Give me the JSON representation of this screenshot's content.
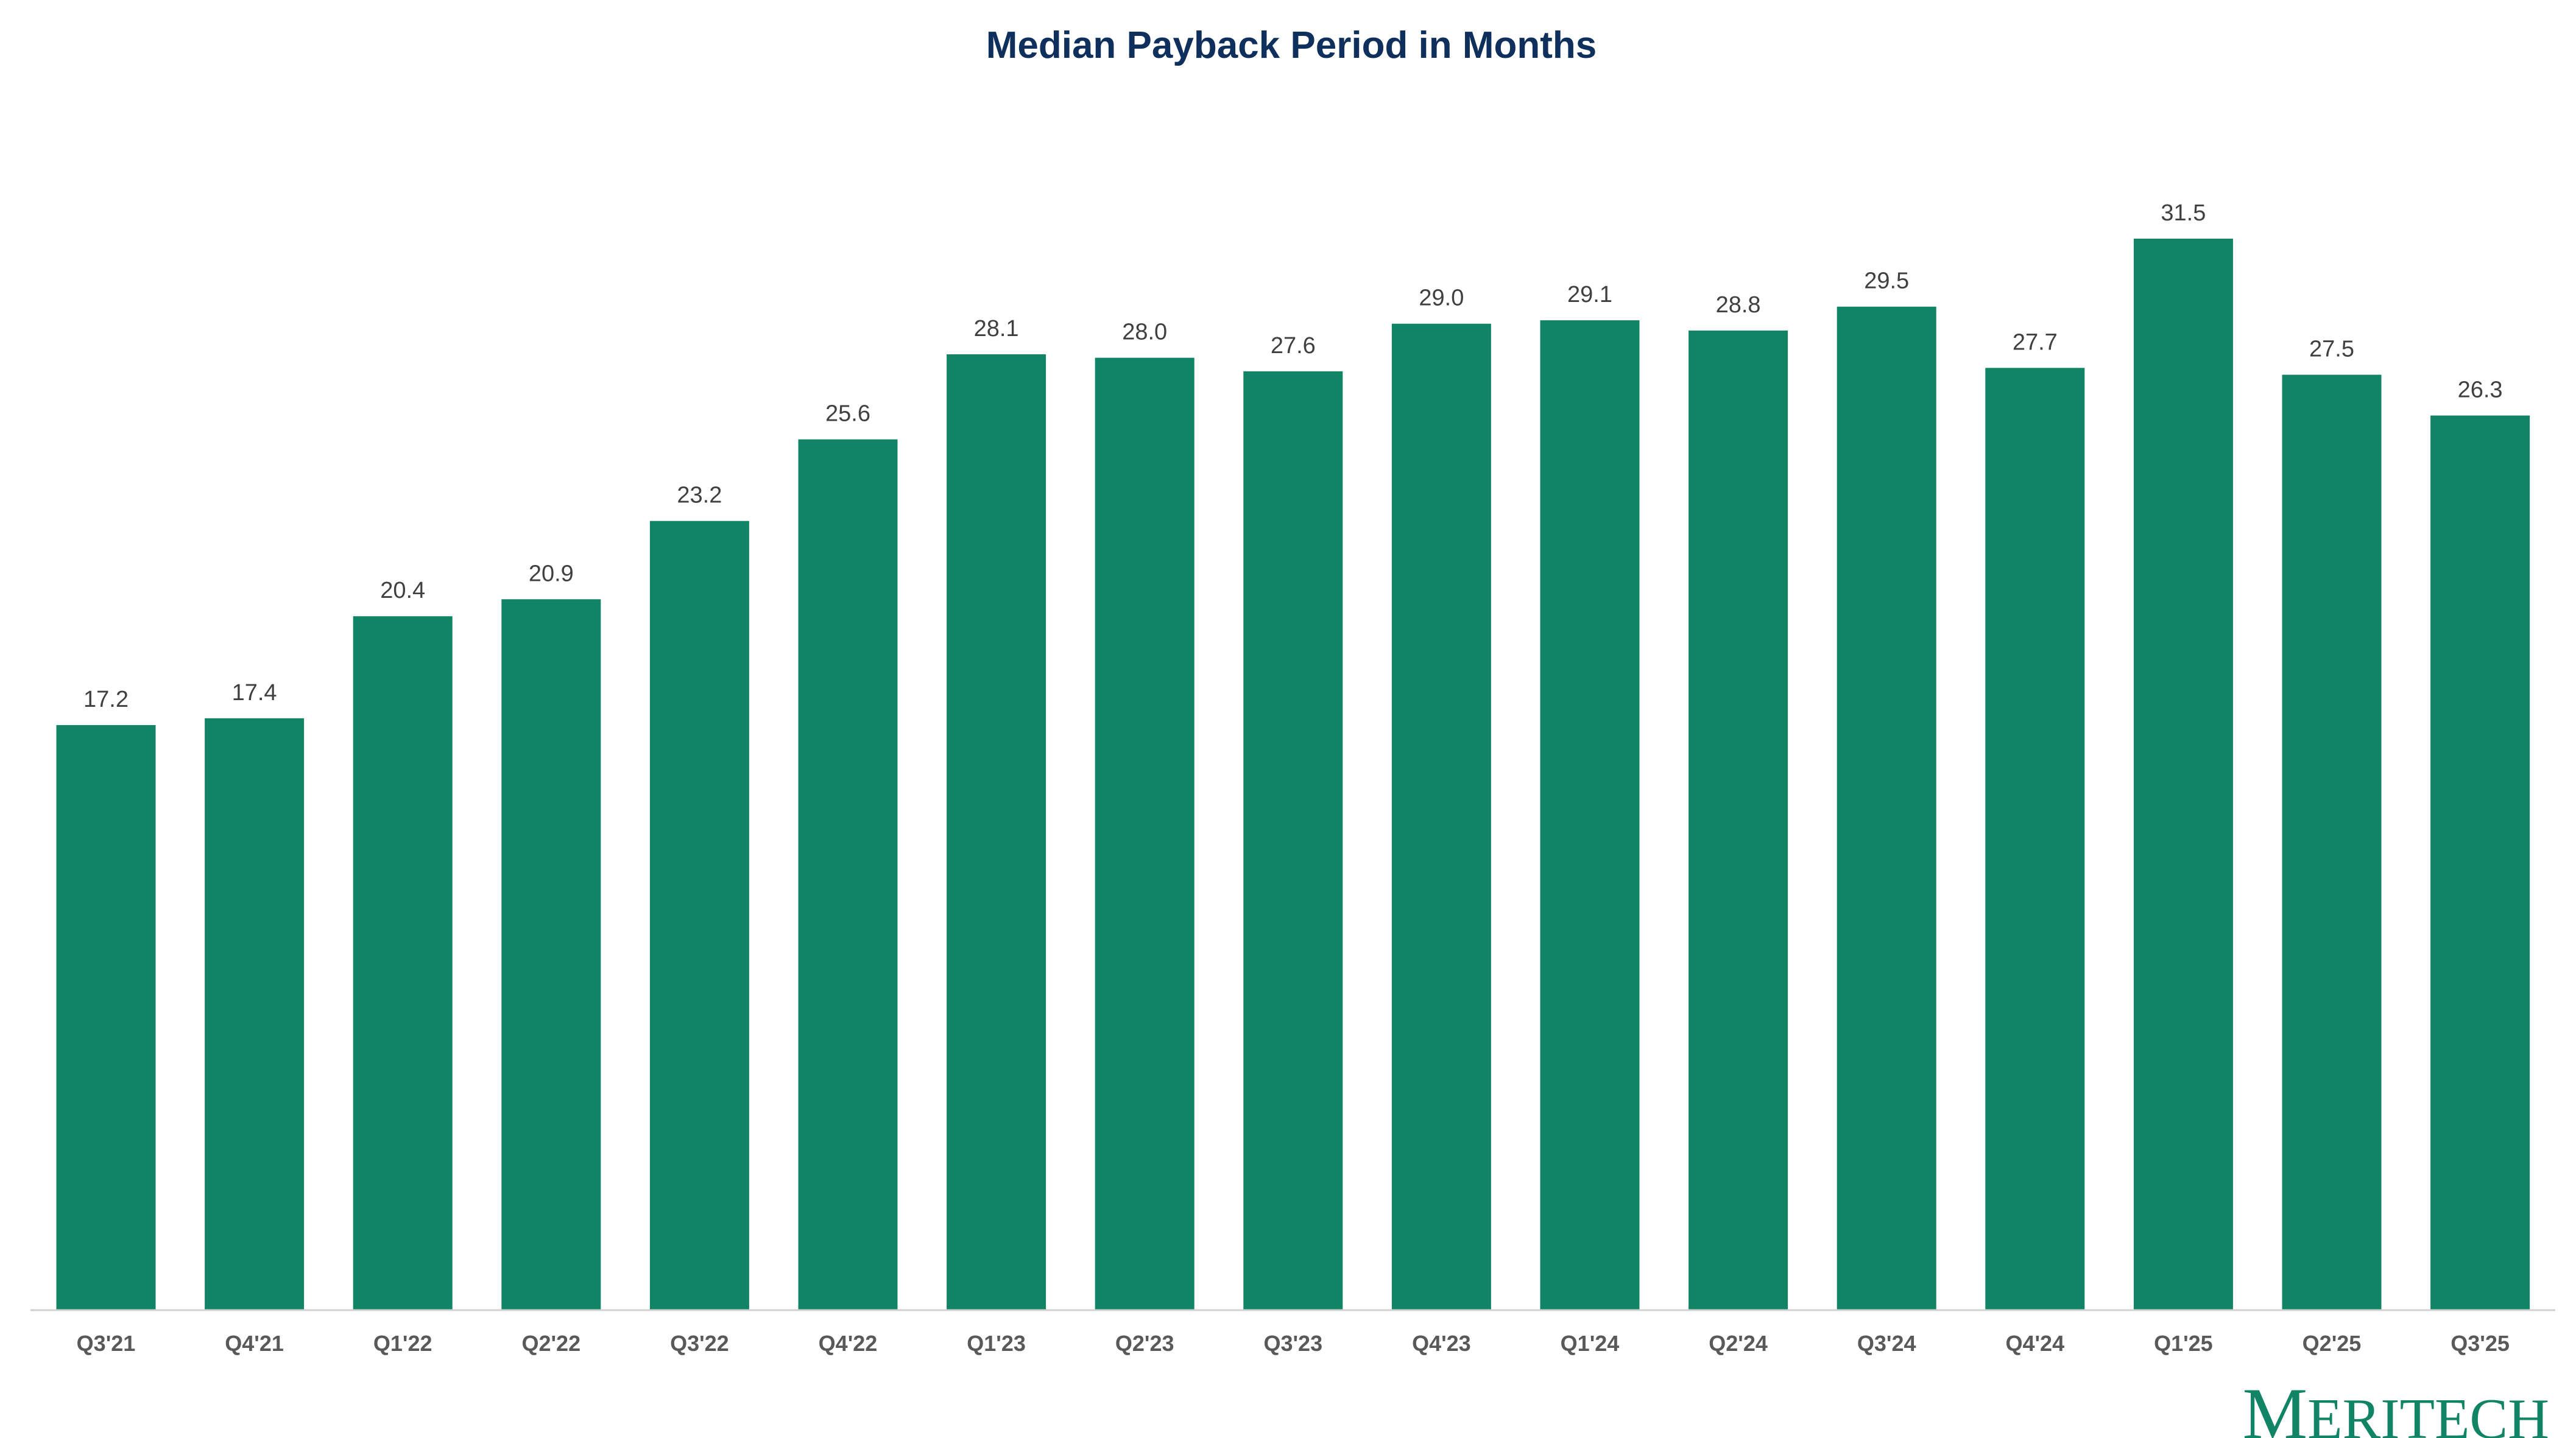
{
  "brand": {
    "logo_text": "Meritech",
    "bar_color": "#118466",
    "title_color": "#0f2f5c"
  },
  "chart_data": {
    "type": "bar",
    "title": "Median Payback Period in Months",
    "xlabel": "",
    "ylabel": "",
    "ylim": [
      0,
      36
    ],
    "grid": false,
    "legend": "none",
    "categories": [
      "Q3'21",
      "Q4'21",
      "Q1'22",
      "Q2'22",
      "Q3'22",
      "Q4'22",
      "Q1'23",
      "Q2'23",
      "Q3'23",
      "Q4'23",
      "Q1'24",
      "Q2'24",
      "Q3'24",
      "Q4'24",
      "Q1'25",
      "Q2'25",
      "Q3'25"
    ],
    "values": [
      17.2,
      17.4,
      20.4,
      20.9,
      23.2,
      25.6,
      28.1,
      28.0,
      27.6,
      29.0,
      29.1,
      28.8,
      29.5,
      27.7,
      31.5,
      27.5,
      26.3
    ],
    "value_labels": [
      "17.2",
      "17.4",
      "20.4",
      "20.9",
      "23.2",
      "25.6",
      "28.1",
      "28.0",
      "27.6",
      "29.0",
      "29.1",
      "28.8",
      "29.5",
      "27.7",
      "31.5",
      "27.5",
      "26.3"
    ]
  }
}
